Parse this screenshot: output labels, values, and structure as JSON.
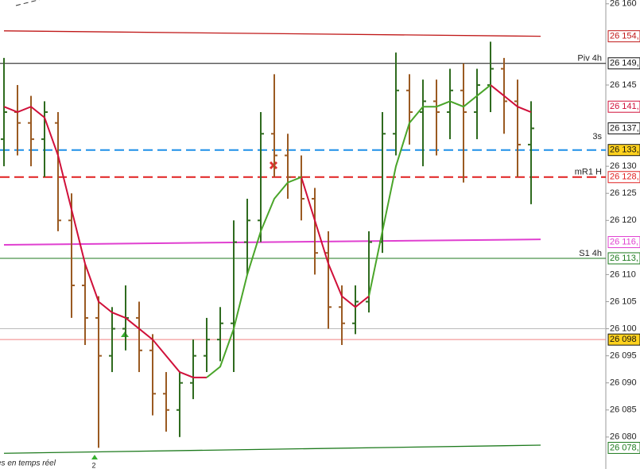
{
  "chart_data": {
    "type": "ohlc",
    "ylim": [
      26074.1,
      26160.7
    ],
    "yticks": [
      {
        "value": 26160,
        "label": "26 160"
      },
      {
        "value": 26145,
        "label": "26 145"
      },
      {
        "value": 26130,
        "label": "26 130"
      },
      {
        "value": 26125,
        "label": "26 125"
      },
      {
        "value": 26120,
        "label": "26 120"
      },
      {
        "value": 26110,
        "label": "26 110"
      },
      {
        "value": 26105,
        "label": "26 105"
      },
      {
        "value": 26100,
        "label": "26 100"
      },
      {
        "value": 26095,
        "label": "26 095"
      },
      {
        "value": 26090,
        "label": "26 090"
      },
      {
        "value": 26085,
        "label": "26 085"
      },
      {
        "value": 26080,
        "label": "26 080"
      }
    ],
    "up_color": "#2f6b1f",
    "down_color": "#9a5a22",
    "ohlc": [
      [
        26135,
        26150,
        26130,
        26140
      ],
      [
        26140,
        26145,
        26132,
        26138
      ],
      [
        26138,
        26143,
        26130,
        26135
      ],
      [
        26135,
        26142,
        26128,
        26140
      ],
      [
        26138,
        26140,
        26118,
        26120
      ],
      [
        26120,
        26125,
        26102,
        26108
      ],
      [
        26108,
        26112,
        26097,
        26102
      ],
      [
        26102,
        26106,
        26078,
        26095
      ],
      [
        26095,
        26104,
        26092,
        26100
      ],
      [
        26100,
        26108,
        26096,
        26102
      ],
      [
        26102,
        26105,
        26092,
        26096
      ],
      [
        26096,
        26099,
        26084,
        26088
      ],
      [
        26088,
        26092,
        26081,
        26085
      ],
      [
        26085,
        26092,
        26080,
        26090
      ],
      [
        26090,
        26098,
        26087,
        26095
      ],
      [
        26095,
        26102,
        26092,
        26098
      ],
      [
        26098,
        26104,
        26094,
        26101
      ],
      [
        26101,
        26120,
        26092,
        26116
      ],
      [
        26116,
        26124,
        26110,
        26120
      ],
      [
        26120,
        26140,
        26116,
        26136
      ],
      [
        26136,
        26147,
        26128,
        26132
      ],
      [
        26132,
        26136,
        26124,
        26128
      ],
      [
        26128,
        26132,
        26120,
        26124
      ],
      [
        26124,
        26126,
        26110,
        26114
      ],
      [
        26114,
        26118,
        26100,
        26104
      ],
      [
        26104,
        26108,
        26097,
        26101
      ],
      [
        26101,
        26108,
        26099,
        26105
      ],
      [
        26105,
        26118,
        26103,
        26116
      ],
      [
        26116,
        26140,
        26114,
        26136
      ],
      [
        26136,
        26151,
        26132,
        26144
      ],
      [
        26144,
        26147,
        26134,
        26140
      ],
      [
        26140,
        26146,
        26130,
        26142
      ],
      [
        26142,
        26146,
        26132,
        26140
      ],
      [
        26140,
        26148,
        26135,
        26144
      ],
      [
        26144,
        26149,
        26127,
        26140
      ],
      [
        26140,
        26148,
        26135,
        26145
      ],
      [
        26145,
        26153,
        26140,
        26148
      ],
      [
        26148,
        26150,
        26136,
        26142
      ],
      [
        26142,
        26146,
        26128,
        26134
      ],
      [
        26134,
        26142,
        26123,
        26137
      ]
    ],
    "series": [
      {
        "color": "#d0103a",
        "values": [
          26141,
          26140,
          26141,
          26139,
          26132,
          26122,
          26112,
          26105,
          26103,
          26102,
          26100,
          26098,
          26095,
          26092,
          26091,
          26091,
          null,
          null,
          null,
          null,
          null,
          null,
          26128,
          26120,
          26112,
          26106,
          26104,
          26106,
          null,
          null,
          null,
          null,
          null,
          null,
          null,
          null,
          26145,
          26143,
          26141,
          26140
        ]
      },
      {
        "color": "#4aa52a",
        "values": [
          null,
          null,
          null,
          null,
          null,
          null,
          null,
          null,
          null,
          null,
          null,
          null,
          null,
          null,
          null,
          26091,
          26093,
          26100,
          26110,
          26118,
          26124,
          26127,
          26128,
          null,
          null,
          null,
          null,
          26106,
          26118,
          26130,
          26138,
          26141,
          26141,
          26142,
          26141,
          26143,
          26145,
          null,
          null,
          null
        ]
      }
    ],
    "overlays": [
      {
        "color": "#c01818",
        "values": [
          26155,
          26154
        ]
      },
      {
        "color": "#e040d0",
        "values": [
          26115.5,
          26116.5
        ]
      },
      {
        "color": "#1d7a1d",
        "values": [
          26077,
          26078.5
        ]
      }
    ],
    "levels": [
      {
        "value": 26149,
        "color": "#111111",
        "label": "Piv 4h"
      },
      {
        "value": 26133,
        "color": "#1e90e8"
      },
      {
        "value": 26128,
        "color": "#e02020",
        "label": "mR1 H"
      },
      {
        "value": 26113,
        "color": "#1d7a1d",
        "label": "S1 4h"
      },
      {
        "value": 26100,
        "color": "#bbbbbb"
      },
      {
        "value": 26098,
        "color": "#f08080"
      }
    ],
    "price_tags": [
      {
        "value": 26154,
        "label": "26 154,",
        "color": "#c01818",
        "bg": "#ffffff"
      },
      {
        "value": 26149,
        "label": "26 149,",
        "color": "#111111",
        "bg": "#ffffff"
      },
      {
        "value": 26141,
        "label": "26 141,",
        "color": "#d0103a",
        "bg": "#ffffff"
      },
      {
        "value": 26137,
        "label": "26 137,",
        "color": "#111111",
        "bg": "#ffffff"
      },
      {
        "value": 26133,
        "label": "26 133,",
        "color": "#111111",
        "bg": "#ffd21e"
      },
      {
        "value": 26128,
        "label": "26 128,",
        "color": "#e02020",
        "bg": "#ffffff"
      },
      {
        "value": 26116,
        "label": "26 116,",
        "color": "#e040d0",
        "bg": "#ffffff"
      },
      {
        "value": 26113,
        "label": "26 113,",
        "color": "#1d7a1d",
        "bg": "#ffffff"
      },
      {
        "value": 26098,
        "label": "26 098",
        "color": "#111111",
        "bg": "#ffd21e"
      },
      {
        "value": 26078,
        "label": "26 078,",
        "color": "#1d7a1d",
        "bg": "#ffffff"
      }
    ],
    "annotations": {
      "timer": "3s",
      "count": "2",
      "footer": "es en temps réel"
    }
  }
}
